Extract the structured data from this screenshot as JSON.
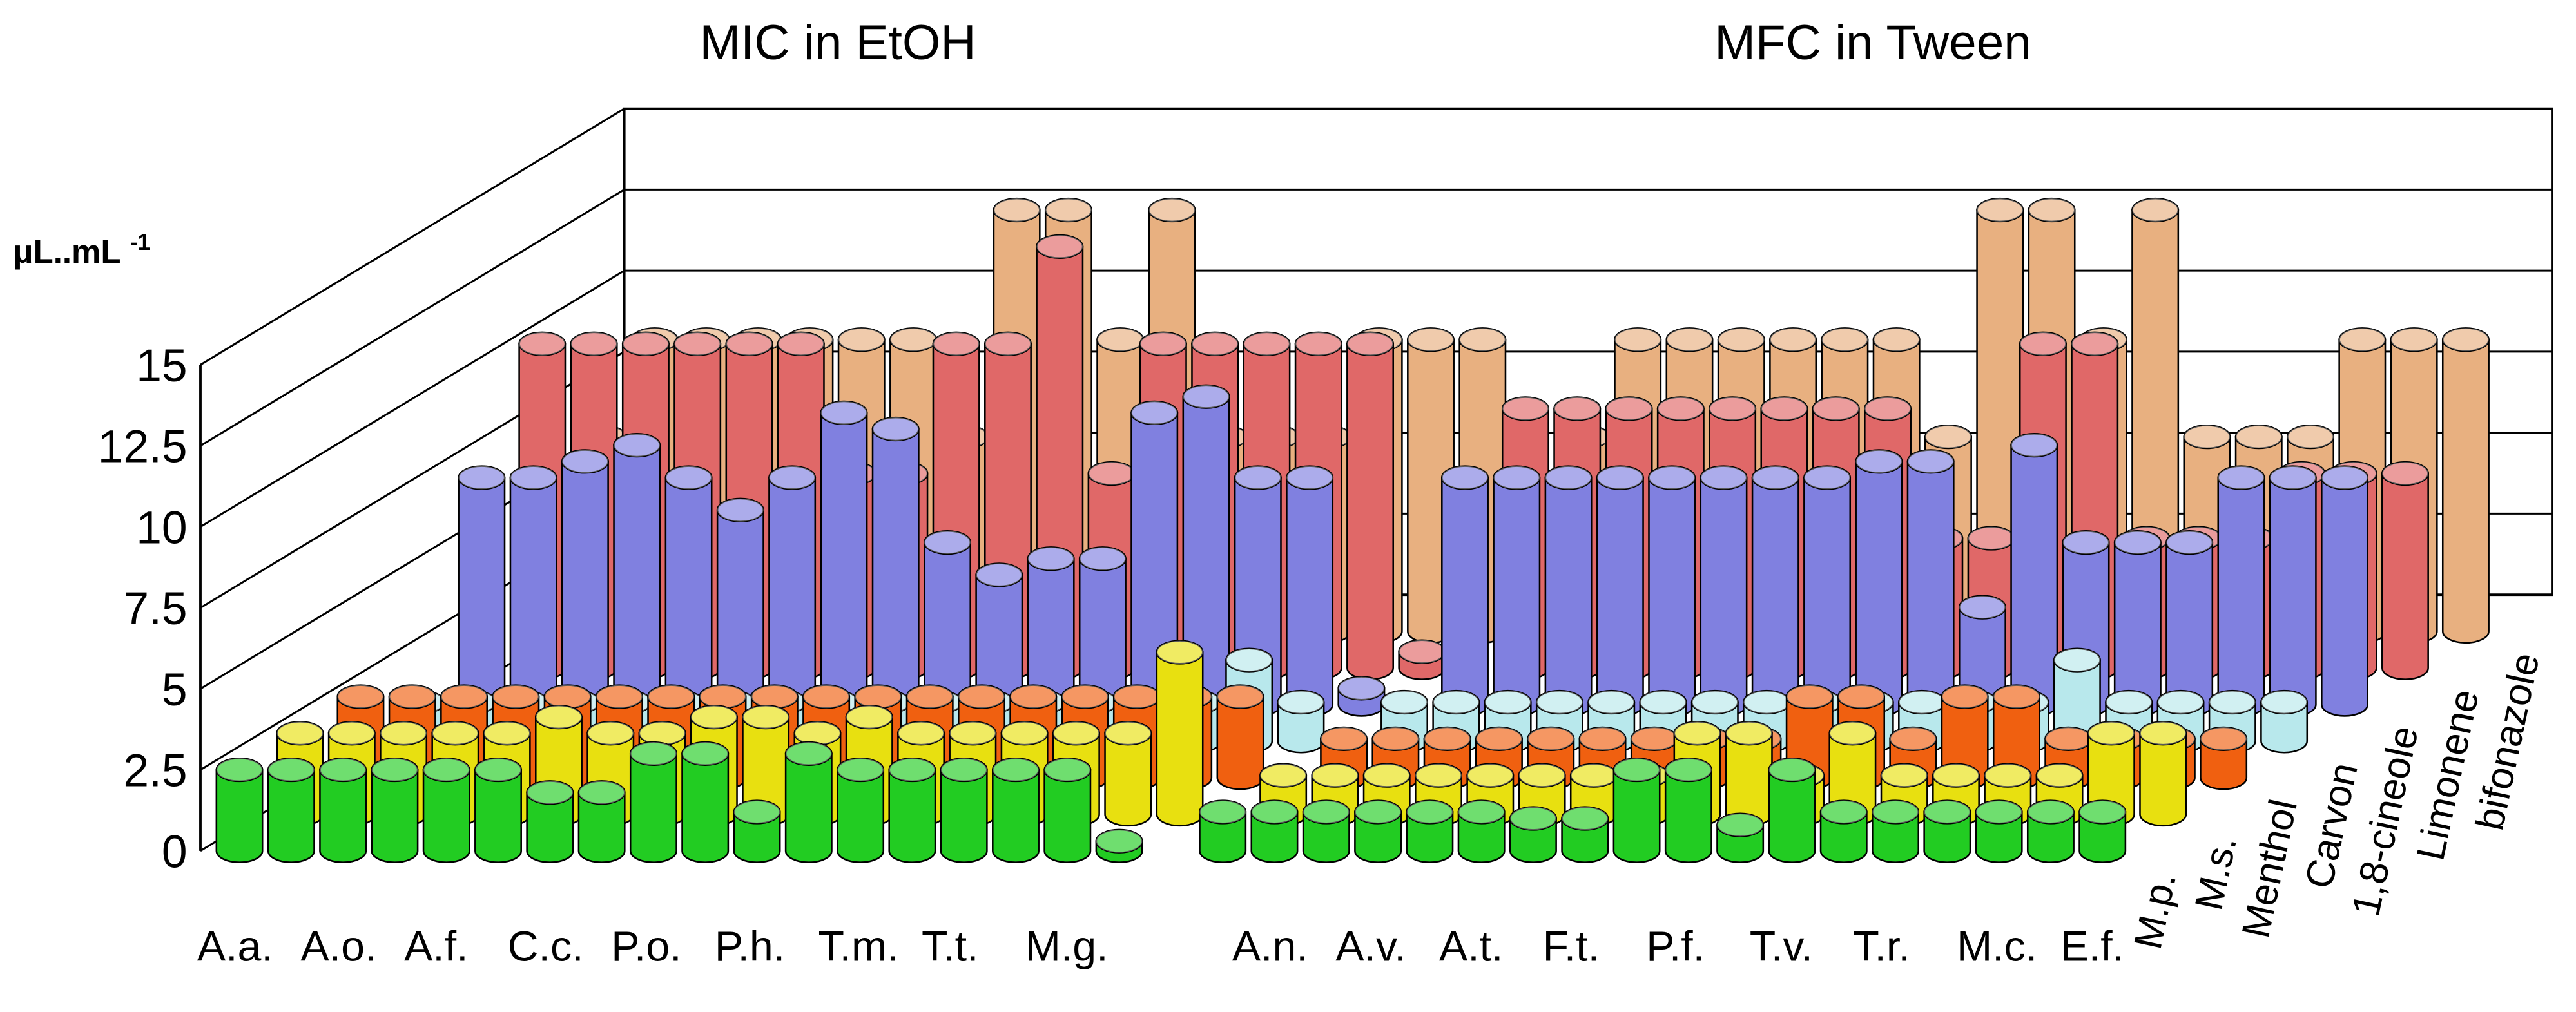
{
  "chart_data": {
    "type": "bar3d",
    "titles": [
      "MIC in EtOH",
      "MFC in Tween"
    ],
    "y_unit": "μL..mL",
    "y_unit_exponent": "-1",
    "categories": [
      "A.a.",
      null,
      "A.o.",
      null,
      "A.f.",
      null,
      "C.c.",
      null,
      "P.o.",
      null,
      "P.h.",
      null,
      "T.m.",
      null,
      "T.t.",
      null,
      "M.g.",
      null,
      null,
      null,
      "A.n.",
      null,
      "A.v.",
      null,
      "A.t.",
      null,
      "F.t.",
      null,
      "P.f.",
      null,
      "T.v.",
      null,
      "T.r.",
      null,
      "M.c.",
      null,
      "E.f."
    ],
    "ylim": [
      0,
      15
    ],
    "yticks": [
      0,
      2.5,
      5,
      7.5,
      10,
      12.5,
      15
    ],
    "grid": true,
    "series": [
      {
        "name": "M.p.",
        "color": "#22cc22",
        "values": [
          2.5,
          2.5,
          2.5,
          2.5,
          2.5,
          2.5,
          1.8,
          1.8,
          3,
          3,
          1.2,
          3,
          2.5,
          2.5,
          2.5,
          2.5,
          2.5,
          0.3,
          null,
          1.2,
          1.2,
          1.2,
          1.2,
          1.2,
          1.2,
          1,
          1,
          2.5,
          2.5,
          0.8,
          2.5,
          1.2,
          1.2,
          1.2,
          1.2,
          1.2,
          1.2
        ]
      },
      {
        "name": "M.s.",
        "color": "#e8e010",
        "values": [
          2.5,
          2.5,
          2.5,
          2.5,
          2.5,
          3,
          2.5,
          2.5,
          3,
          3,
          2.5,
          3,
          2.5,
          2.5,
          2.5,
          2.5,
          2.5,
          5,
          null,
          1.2,
          1.2,
          1.2,
          1.2,
          1.2,
          1.2,
          1.2,
          1.2,
          2.5,
          2.5,
          1.2,
          2.5,
          1.2,
          1.2,
          1.2,
          1.2,
          2.5,
          2.5
        ]
      },
      {
        "name": "Menthol",
        "color": "#f06010",
        "values": [
          2.5,
          2.5,
          2.5,
          2.5,
          2.5,
          2.5,
          2.5,
          2.5,
          2.5,
          2.5,
          2.5,
          2.5,
          2.5,
          2.5,
          2.5,
          2.5,
          2.5,
          2.5,
          null,
          1.2,
          1.2,
          1.2,
          1.2,
          1.2,
          1.2,
          1.2,
          1.2,
          1.2,
          2.5,
          2.5,
          1.2,
          2.5,
          2.5,
          1.2,
          1.2,
          1.2,
          1.2
        ]
      },
      {
        "name": "Carvon",
        "color": "#b8e8ec",
        "values": [
          1.2,
          1.2,
          1.2,
          1.2,
          1.2,
          1.2,
          1.2,
          1.2,
          1.2,
          1.2,
          1.2,
          1.2,
          1.2,
          1.2,
          1.2,
          1.2,
          2.5,
          1.2,
          null,
          1.2,
          1.2,
          1.2,
          1.2,
          1.2,
          1.2,
          1.2,
          1.2,
          1.2,
          1.2,
          1.2,
          1.2,
          1.2,
          2.5,
          1.2,
          1.2,
          1.2,
          1.2
        ]
      },
      {
        "name": "1,8-cineole",
        "color": "#8080e0",
        "values": [
          7,
          7,
          7.5,
          8,
          7,
          6,
          7,
          9,
          8.5,
          5,
          4,
          4.5,
          4.5,
          9,
          9.5,
          7,
          7,
          0.5,
          null,
          7,
          7,
          7,
          7,
          7,
          7,
          7,
          7,
          7.5,
          7.5,
          3,
          8,
          5,
          5,
          5,
          7,
          7,
          7
        ]
      },
      {
        "name": "Limonene",
        "color": "#e06868",
        "values": [
          10,
          10,
          10,
          10,
          10,
          10,
          6,
          6,
          10,
          10,
          13,
          6,
          10,
          10,
          10,
          10,
          10,
          0.5,
          null,
          8,
          8,
          8,
          8,
          8,
          8,
          8,
          8,
          4,
          4,
          10,
          10,
          4,
          4,
          4,
          6,
          6,
          6
        ]
      },
      {
        "name": "bifonazole",
        "color": "#e8b080",
        "values": [
          6,
          9,
          9,
          9,
          9,
          9,
          9,
          6,
          13,
          13,
          9,
          13,
          6,
          6,
          6,
          9,
          9,
          9,
          null,
          6,
          9,
          9,
          9,
          9,
          9,
          9,
          6,
          13,
          13,
          9,
          13,
          6,
          6,
          6,
          9,
          9,
          9
        ]
      }
    ]
  }
}
